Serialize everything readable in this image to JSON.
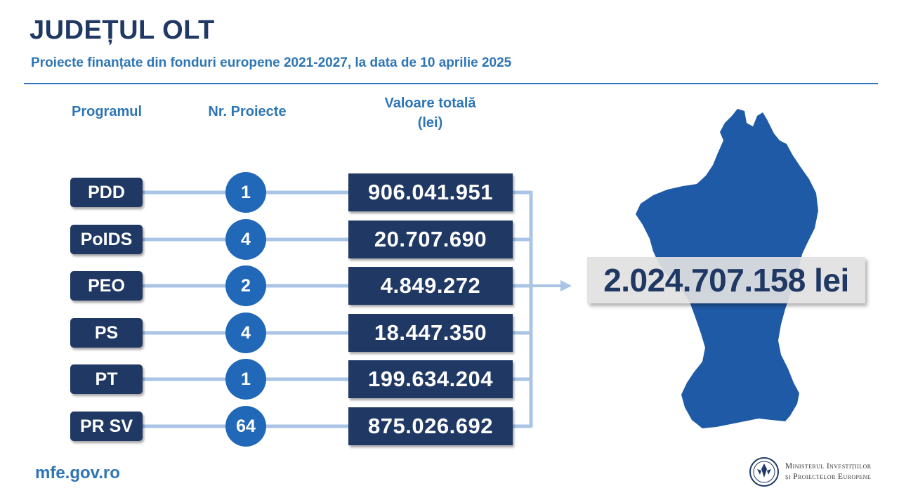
{
  "header": {
    "title": "JUDEȚUL OLT",
    "subtitle": "Proiecte finanțate din fonduri europene 2021-2027, la data de 10 aprilie 2025"
  },
  "columns": {
    "program": "Programul",
    "nr_projects": "Nr. Proiecte",
    "value_line1": "Valoare totală",
    "value_line2": "(lei)"
  },
  "rows": [
    {
      "program": "PDD",
      "nr": "1",
      "value": "906.041.951"
    },
    {
      "program": "PoIDS",
      "nr": "4",
      "value": "20.707.690"
    },
    {
      "program": "PEO",
      "nr": "2",
      "value": "4.849.272"
    },
    {
      "program": "PS",
      "nr": "4",
      "value": "18.447.350"
    },
    {
      "program": "PT",
      "nr": "1",
      "value": "199.634.204"
    },
    {
      "program": "PR SV",
      "nr": "64",
      "value": "875.026.692"
    }
  ],
  "total": "2.024.707.158 lei",
  "footer": {
    "url": "mfe.gov.ro",
    "ministry_line1": "Ministerul Investițiilor",
    "ministry_line2": "și Proiectelor Europene"
  },
  "colors": {
    "dark_navy": "#1f3864",
    "accent_blue": "#2e75b6",
    "circle_blue": "#2268b8",
    "map_blue": "#1f5aa6",
    "connector": "#a9c4e4"
  },
  "icons": {
    "map": "olt-county-map",
    "logo": "government-seal-icon"
  }
}
